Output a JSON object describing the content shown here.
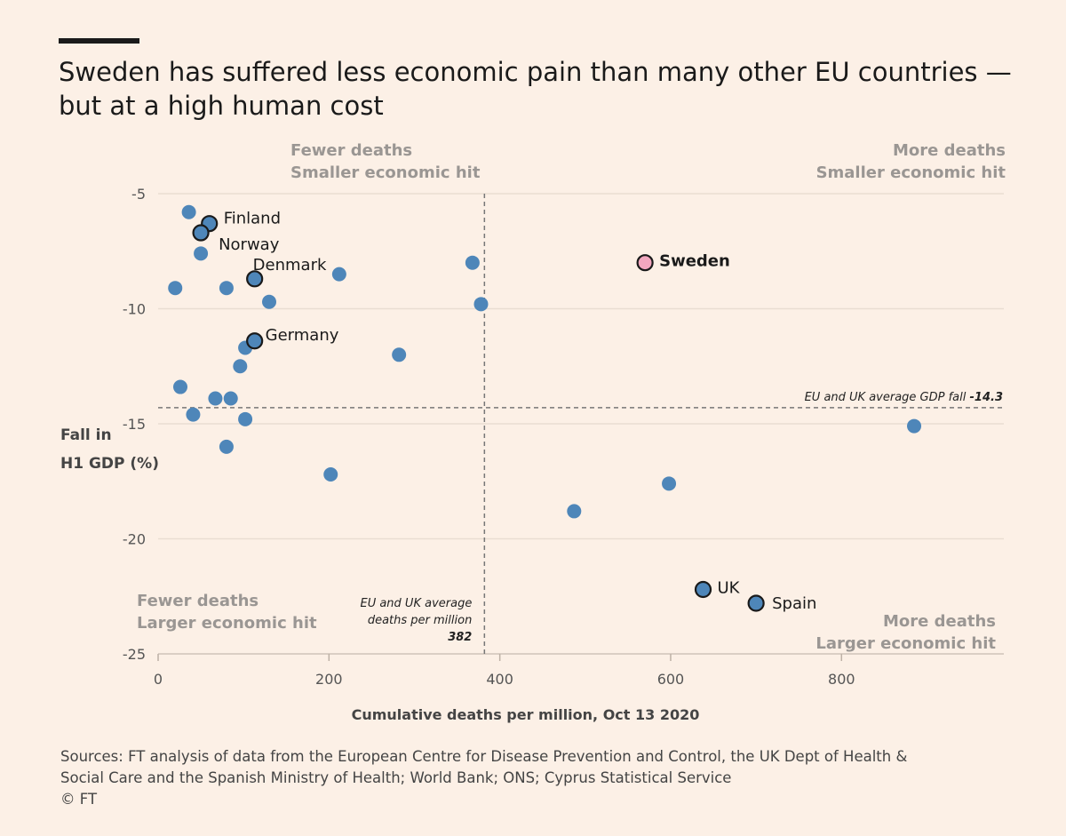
{
  "title_lines": [
    "Sweden has suffered less economic pain than many other EU countries —",
    "but at a high human cost"
  ],
  "sources_lines": [
    "Sources: FT analysis of data from the European Centre for Disease Prevention and Control, the UK Dept of Health &",
    "Social Care and the Spanish Ministry of Health; World Bank; ONS; Cyprus Statistical Service",
    "© FT"
  ],
  "colors": {
    "background": "#fcf0e6",
    "point": "#4e86b9",
    "point_outline": "#1a1a1a",
    "highlight": "#f2a7bf",
    "quadrant_text": "#9a9693",
    "grid": "#e9ddd2"
  },
  "chart_data": {
    "type": "scatter",
    "title": "Sweden has suffered less economic pain than many other EU countries — but at a high human cost",
    "xlabel": "Cumulative deaths per million, Oct 13 2020",
    "ylabel_lines": [
      "Fall in",
      "H1 GDP (%)"
    ],
    "xlim": [
      0,
      990
    ],
    "ylim": [
      -25,
      -5
    ],
    "x_ticks": [
      0,
      200,
      400,
      600,
      800
    ],
    "y_ticks": [
      -5,
      -10,
      -15,
      -20,
      -25
    ],
    "grid": "horizontal",
    "quadrant_labels": {
      "top_left": [
        "Fewer deaths",
        "Smaller economic hit"
      ],
      "top_right": [
        "More deaths",
        "Smaller economic hit"
      ],
      "bottom_left": [
        "Fewer deaths",
        "Larger economic hit"
      ],
      "bottom_right": [
        "More deaths",
        "Larger economic hit"
      ]
    },
    "reference_lines": {
      "gdp_avg": {
        "value": -14.3,
        "label": "EU and UK average GDP fall ",
        "value_label": "-14.3"
      },
      "deaths_avg": {
        "value": 382,
        "label_lines": [
          "EU and UK average",
          "deaths per million"
        ],
        "value_label": "382"
      }
    },
    "points": [
      {
        "x": 36,
        "y": -5.8
      },
      {
        "x": 50,
        "y": -7.6
      },
      {
        "x": 20,
        "y": -9.1
      },
      {
        "x": 80,
        "y": -9.1
      },
      {
        "x": 130,
        "y": -9.7
      },
      {
        "x": 212,
        "y": -8.5
      },
      {
        "x": 368,
        "y": -8.0
      },
      {
        "x": 378,
        "y": -9.8
      },
      {
        "x": 102,
        "y": -11.7
      },
      {
        "x": 96,
        "y": -12.5
      },
      {
        "x": 282,
        "y": -12.0
      },
      {
        "x": 26,
        "y": -13.4
      },
      {
        "x": 67,
        "y": -13.9
      },
      {
        "x": 85,
        "y": -13.9
      },
      {
        "x": 41,
        "y": -14.6
      },
      {
        "x": 102,
        "y": -14.8
      },
      {
        "x": 80,
        "y": -16.0
      },
      {
        "x": 202,
        "y": -17.2
      },
      {
        "x": 885,
        "y": -15.1
      },
      {
        "x": 598,
        "y": -17.6
      },
      {
        "x": 487,
        "y": -18.8
      },
      {
        "x": 60,
        "y": -6.3,
        "label": "Finland",
        "outlined": true
      },
      {
        "x": 50,
        "y": -6.7,
        "label": "Norway",
        "outlined": true
      },
      {
        "x": 113,
        "y": -8.7,
        "label": "Denmark",
        "outlined": true
      },
      {
        "x": 113,
        "y": -11.4,
        "label": "Germany",
        "outlined": true
      },
      {
        "x": 570,
        "y": -8.0,
        "label": "Sweden",
        "outlined": true,
        "highlight": true
      },
      {
        "x": 638,
        "y": -22.2,
        "label": "UK",
        "outlined": true
      },
      {
        "x": 700,
        "y": -22.8,
        "label": "Spain",
        "outlined": true
      }
    ]
  }
}
